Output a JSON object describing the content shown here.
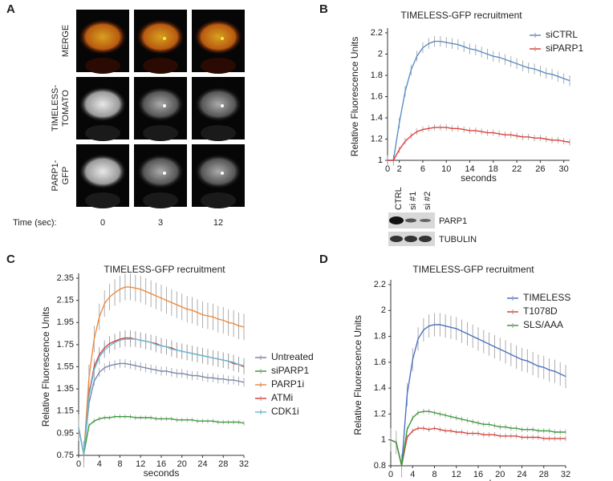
{
  "panels": [
    "A",
    "B",
    "C",
    "D"
  ],
  "panel_a": {
    "rows": [
      [
        "MERGE"
      ],
      [
        "TIMELESS-",
        "TOMATO"
      ],
      [
        "PARP1-",
        "GFP"
      ]
    ],
    "time_label": "Time (sec):",
    "times": [
      0,
      3,
      12
    ]
  },
  "blot": {
    "lanes": [
      "CTRL",
      "si #1",
      "si #2"
    ],
    "bands": [
      "PARP1",
      "TUBULIN"
    ]
  },
  "chart_data": [
    {
      "type": "line",
      "title": "TIMELESS-GFP recruitment",
      "x_label": "seconds",
      "y_label": "Relative Fluorescence Units",
      "x": [
        0,
        1,
        2,
        3,
        4,
        5,
        6,
        7,
        8,
        9,
        10,
        11,
        12,
        13,
        14,
        15,
        16,
        17,
        18,
        19,
        20,
        21,
        22,
        23,
        24,
        25,
        26,
        27,
        28,
        29,
        30,
        31
      ],
      "series": [
        {
          "name": "siCTRL",
          "color": "#5b8fc9",
          "error": 0.05,
          "values": [
            1,
            1.0,
            1.35,
            1.65,
            1.85,
            1.98,
            2.06,
            2.1,
            2.12,
            2.12,
            2.11,
            2.1,
            2.09,
            2.07,
            2.05,
            2.04,
            2.02,
            2.0,
            1.98,
            1.97,
            1.95,
            1.93,
            1.91,
            1.89,
            1.87,
            1.86,
            1.84,
            1.82,
            1.81,
            1.79,
            1.77,
            1.75
          ]
        },
        {
          "name": "siPARP1",
          "color": "#e0403a",
          "error": 0.03,
          "values": [
            1,
            1,
            1.1,
            1.18,
            1.23,
            1.27,
            1.29,
            1.3,
            1.31,
            1.31,
            1.31,
            1.3,
            1.3,
            1.29,
            1.28,
            1.28,
            1.27,
            1.26,
            1.26,
            1.25,
            1.24,
            1.24,
            1.23,
            1.22,
            1.22,
            1.21,
            1.21,
            1.2,
            1.19,
            1.19,
            1.18,
            1.17
          ]
        }
      ],
      "xlim": [
        0,
        31
      ],
      "ylim": [
        1,
        2.2
      ],
      "xticks": [
        0,
        2,
        6,
        10,
        14,
        18,
        22,
        26,
        30
      ],
      "yticks": [
        1,
        1.2,
        1.4,
        1.6,
        1.8,
        2,
        2.2
      ],
      "legend": "upper right"
    },
    {
      "type": "line",
      "title": "TIMELESS-GFP recruitment",
      "x_label": "seconds",
      "y_label": "Relative Fluorescence Units",
      "x": [
        0,
        1,
        2,
        3,
        4,
        5,
        6,
        7,
        8,
        9,
        10,
        11,
        12,
        13,
        14,
        15,
        16,
        17,
        18,
        19,
        20,
        21,
        22,
        23,
        24,
        25,
        26,
        27,
        28,
        29,
        30,
        31,
        32
      ],
      "series": [
        {
          "name": "Untreated",
          "color": "#7b86b0",
          "error": 0.04,
          "values": [
            1.0,
            0.76,
            1.22,
            1.42,
            1.5,
            1.54,
            1.56,
            1.57,
            1.58,
            1.58,
            1.57,
            1.56,
            1.55,
            1.54,
            1.53,
            1.52,
            1.51,
            1.51,
            1.5,
            1.49,
            1.49,
            1.48,
            1.47,
            1.47,
            1.46,
            1.45,
            1.45,
            1.44,
            1.44,
            1.43,
            1.43,
            1.42,
            1.41
          ]
        },
        {
          "name": "siPARP1",
          "color": "#3a9a3a",
          "error": 0.02,
          "values": [
            1.0,
            0.76,
            1.02,
            1.06,
            1.08,
            1.09,
            1.09,
            1.1,
            1.1,
            1.1,
            1.1,
            1.09,
            1.09,
            1.09,
            1.09,
            1.08,
            1.08,
            1.08,
            1.08,
            1.07,
            1.07,
            1.07,
            1.07,
            1.06,
            1.06,
            1.06,
            1.06,
            1.05,
            1.05,
            1.05,
            1.05,
            1.05,
            1.04
          ]
        },
        {
          "name": "PARP1i",
          "color": "#f08a3c",
          "error": 0.12,
          "values": [
            1.0,
            0.76,
            1.45,
            1.8,
            2.0,
            2.12,
            2.18,
            2.22,
            2.25,
            2.27,
            2.27,
            2.26,
            2.25,
            2.23,
            2.21,
            2.19,
            2.17,
            2.15,
            2.13,
            2.11,
            2.09,
            2.07,
            2.06,
            2.04,
            2.02,
            2.01,
            2.0,
            1.98,
            1.97,
            1.95,
            1.94,
            1.92,
            1.91
          ]
        },
        {
          "name": "ATMi",
          "color": "#e0403a",
          "error": 0.07,
          "values": [
            1.0,
            0.76,
            1.3,
            1.55,
            1.66,
            1.72,
            1.76,
            1.78,
            1.8,
            1.81,
            1.81,
            1.8,
            1.79,
            1.78,
            1.77,
            1.76,
            1.74,
            1.73,
            1.72,
            1.7,
            1.69,
            1.68,
            1.67,
            1.66,
            1.65,
            1.64,
            1.63,
            1.62,
            1.61,
            1.6,
            1.58,
            1.57,
            1.55
          ]
        },
        {
          "name": "CDK1i",
          "color": "#5fc0e0",
          "error": 0.07,
          "values": [
            1.0,
            0.76,
            1.28,
            1.52,
            1.64,
            1.7,
            1.74,
            1.77,
            1.79,
            1.8,
            1.8,
            1.8,
            1.79,
            1.78,
            1.77,
            1.75,
            1.74,
            1.73,
            1.71,
            1.7,
            1.69,
            1.68,
            1.67,
            1.66,
            1.65,
            1.64,
            1.63,
            1.62,
            1.61,
            1.6,
            1.59,
            1.57,
            1.56
          ]
        }
      ],
      "xlim": [
        0,
        32
      ],
      "ylim": [
        0.75,
        2.35
      ],
      "xticks": [
        0,
        4,
        8,
        12,
        16,
        20,
        24,
        28,
        32
      ],
      "yticks": [
        0.75,
        0.95,
        1.15,
        1.35,
        1.55,
        1.75,
        1.95,
        2.15,
        2.35
      ],
      "legend": "right"
    },
    {
      "type": "line",
      "title": "TIMELESS-GFP recruitment",
      "x_label": "seconds",
      "y_label": "Relative Fluorescence Units",
      "x": [
        0,
        1,
        2,
        3,
        4,
        5,
        6,
        7,
        8,
        9,
        10,
        11,
        12,
        13,
        14,
        15,
        16,
        17,
        18,
        19,
        20,
        21,
        22,
        23,
        24,
        25,
        26,
        27,
        28,
        29,
        30,
        31,
        32
      ],
      "series": [
        {
          "name": "TIMELESS",
          "color": "#4a72c4",
          "error": 0.09,
          "values": [
            1.0,
            0.98,
            0.8,
            1.35,
            1.62,
            1.78,
            1.85,
            1.88,
            1.89,
            1.89,
            1.88,
            1.87,
            1.86,
            1.84,
            1.82,
            1.8,
            1.78,
            1.76,
            1.74,
            1.72,
            1.7,
            1.68,
            1.66,
            1.64,
            1.62,
            1.61,
            1.59,
            1.57,
            1.56,
            1.54,
            1.53,
            1.51,
            1.49
          ]
        },
        {
          "name": "T1078D",
          "color": "#e0403a",
          "error": 0.02,
          "values": [
            1.0,
            0.98,
            0.8,
            1.02,
            1.07,
            1.09,
            1.09,
            1.08,
            1.09,
            1.08,
            1.07,
            1.07,
            1.06,
            1.06,
            1.05,
            1.05,
            1.05,
            1.04,
            1.04,
            1.04,
            1.03,
            1.03,
            1.03,
            1.03,
            1.02,
            1.02,
            1.02,
            1.02,
            1.01,
            1.01,
            1.01,
            1.01,
            1.01
          ]
        },
        {
          "name": "SLS/AAA",
          "color": "#3a9a3a",
          "error": 0.02,
          "values": [
            1.0,
            0.98,
            0.8,
            1.08,
            1.17,
            1.21,
            1.22,
            1.22,
            1.21,
            1.2,
            1.19,
            1.18,
            1.17,
            1.16,
            1.15,
            1.14,
            1.13,
            1.12,
            1.12,
            1.11,
            1.1,
            1.1,
            1.09,
            1.09,
            1.08,
            1.08,
            1.08,
            1.07,
            1.07,
            1.07,
            1.06,
            1.06,
            1.06
          ]
        }
      ],
      "xlim": [
        0,
        32
      ],
      "ylim": [
        0.8,
        2.2
      ],
      "xticks": [
        0,
        4,
        8,
        12,
        16,
        20,
        24,
        28,
        32
      ],
      "yticks": [
        0.8,
        1,
        1.2,
        1.4,
        1.6,
        1.8,
        2,
        2.2
      ],
      "legend": "upper right"
    }
  ]
}
